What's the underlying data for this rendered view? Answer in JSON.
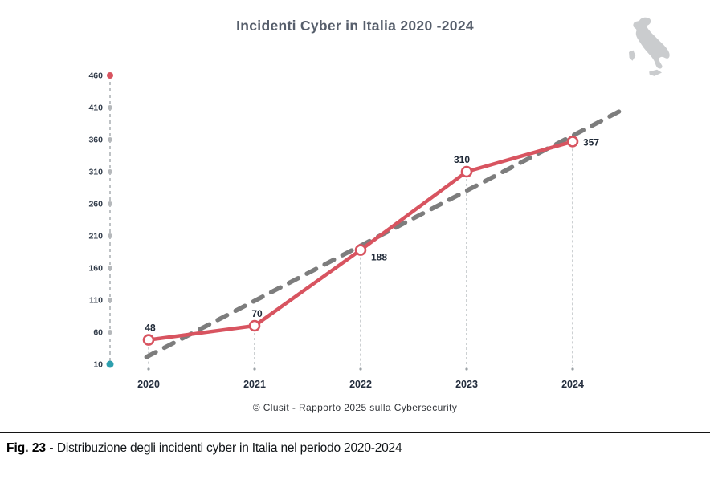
{
  "title": "Incidenti Cyber in Italia 2020 -2024",
  "source_line": "© Clusit - Rapporto 2025 sulla Cybersecurity",
  "caption": {
    "label": "Fig. 23",
    "separator": " - ",
    "text": "Distribuzione degli incidenti cyber in Italia nel periodo 2020-2024"
  },
  "icons": {
    "italy_map": "italy-map-silhouette"
  },
  "colors": {
    "line": "#d85460",
    "marker_fill": "#ffffff",
    "trend": "#7d7d7d",
    "axis_dash": "#a9adb2",
    "axis_dot_top": "#d85460",
    "axis_dot_bottom": "#2d9fae",
    "axis_dot_mid": "#b5b8bb",
    "dropline": "#9aa0a5",
    "title_text": "#565e6b",
    "value_label_text": "#1f2937",
    "year_label_text": "#242e3e",
    "tick_label_text": "#333d4b",
    "map_fill": "#caccce"
  },
  "chart_data": {
    "type": "line",
    "categories": [
      "2020",
      "2021",
      "2022",
      "2023",
      "2024"
    ],
    "series": [
      {
        "name": "Incidenti cyber in Italia",
        "values": [
          48,
          70,
          188,
          310,
          357
        ]
      }
    ],
    "point_labels": [
      "48",
      "70",
      "188",
      "310",
      "357"
    ],
    "title": "Incidenti Cyber in Italia 2020 -2024",
    "xlabel": "",
    "ylabel": "",
    "ylim": [
      10,
      460
    ],
    "yticks": [
      460,
      410,
      360,
      310,
      260,
      210,
      160,
      110,
      60,
      10
    ],
    "grid": false,
    "legend": "none",
    "trendline": true,
    "marker": "open-circle"
  }
}
